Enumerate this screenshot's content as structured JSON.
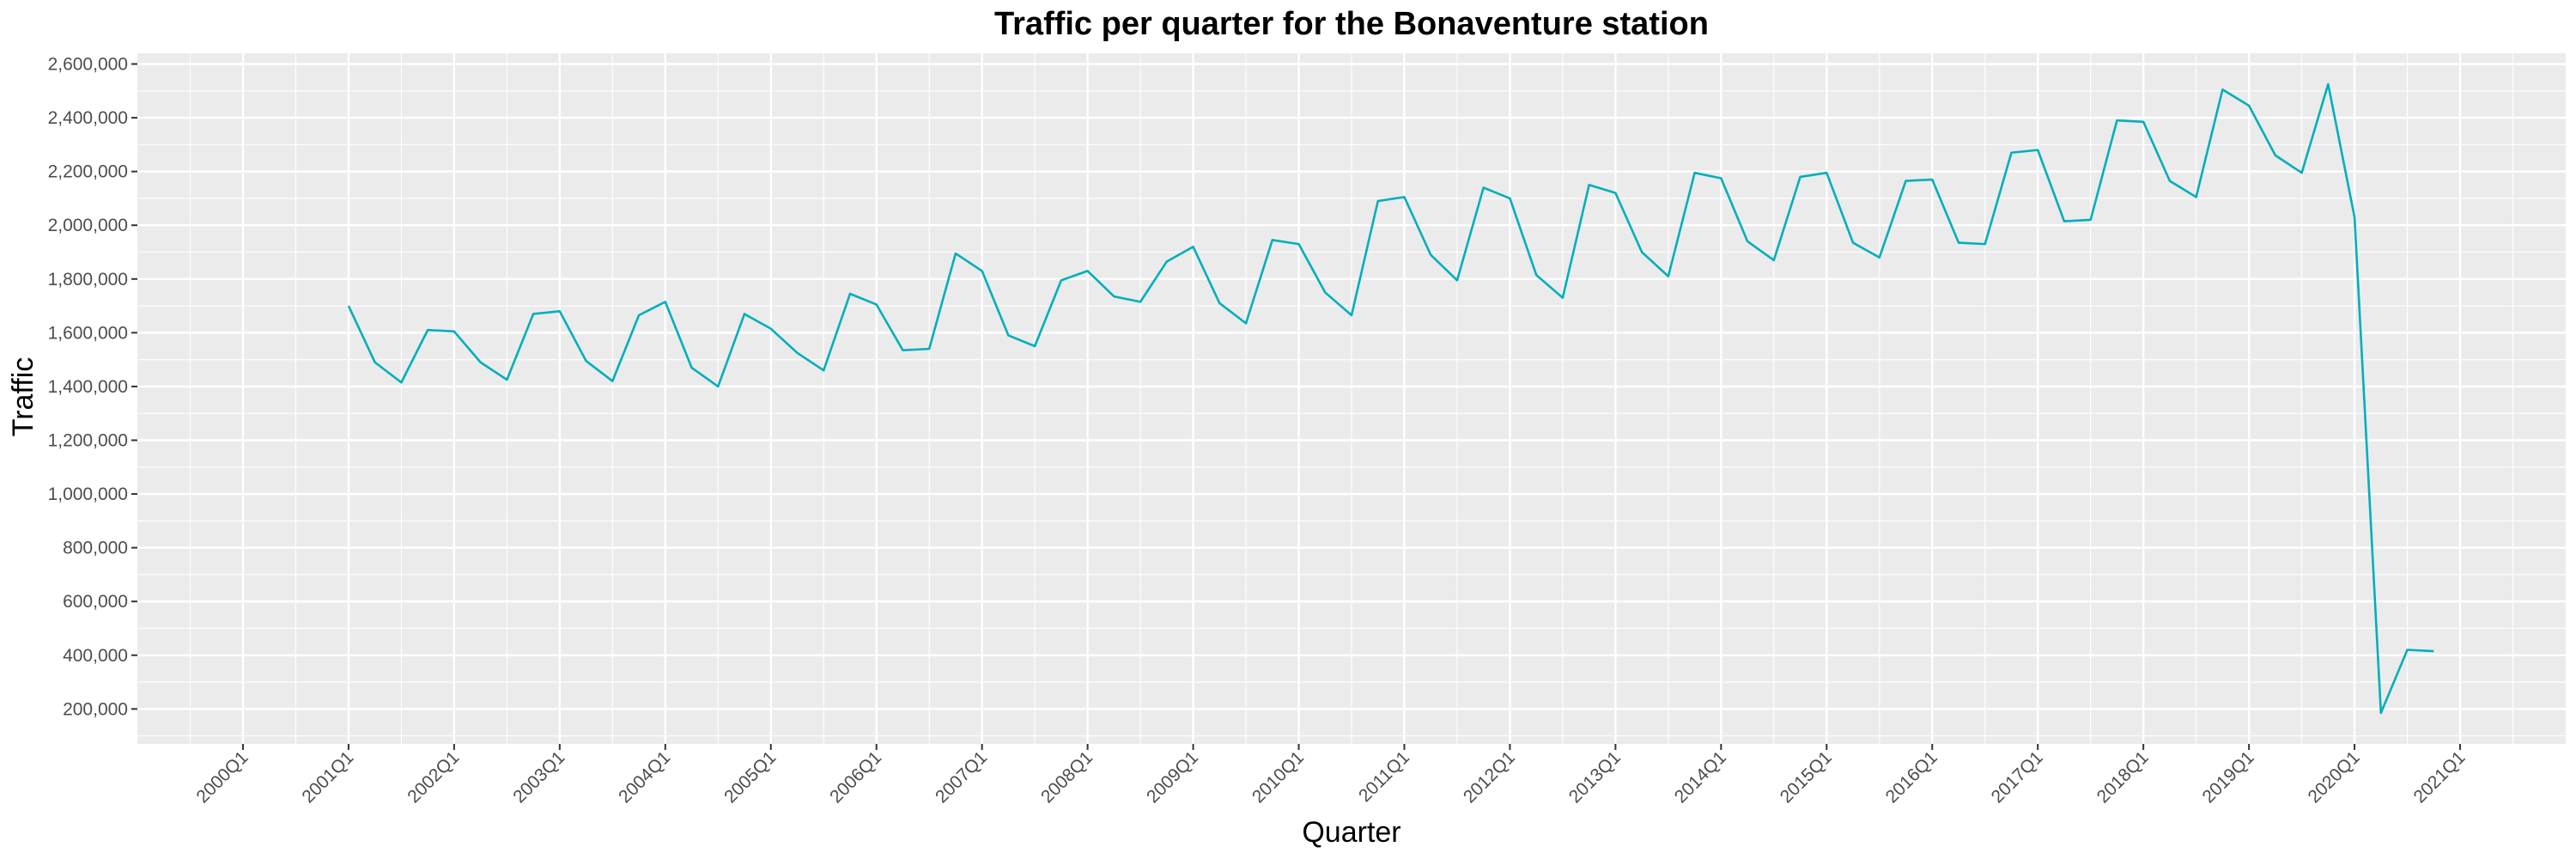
{
  "chart_data": {
    "type": "line",
    "title": "Traffic per quarter for the Bonaventure station",
    "xlabel": "Quarter",
    "ylabel": "Traffic",
    "x_tick_labels": [
      "2000Q1",
      "2001Q1",
      "2002Q1",
      "2003Q1",
      "2004Q1",
      "2005Q1",
      "2006Q1",
      "2007Q1",
      "2008Q1",
      "2009Q1",
      "2010Q1",
      "2011Q1",
      "2012Q1",
      "2013Q1",
      "2014Q1",
      "2015Q1",
      "2016Q1",
      "2017Q1",
      "2018Q1",
      "2019Q1",
      "2020Q1",
      "2021Q1"
    ],
    "y_tick_labels": [
      "200,000",
      "400,000",
      "600,000",
      "800,000",
      "1,000,000",
      "1,200,000",
      "1,400,000",
      "1,600,000",
      "1,800,000",
      "2,000,000",
      "2,200,000",
      "2,400,000",
      "2,600,000"
    ],
    "y_ticks": [
      200000,
      400000,
      600000,
      800000,
      1000000,
      1200000,
      1400000,
      1600000,
      1800000,
      2000000,
      2200000,
      2400000,
      2600000
    ],
    "xlim": [
      "2000Q1",
      "2021Q1"
    ],
    "ylim": [
      70000,
      2640000
    ],
    "grid": true,
    "series": [
      {
        "color": "#00AFBB",
        "x": [
          "2001Q1",
          "2001Q2",
          "2001Q3",
          "2001Q4",
          "2002Q1",
          "2002Q2",
          "2002Q3",
          "2002Q4",
          "2003Q1",
          "2003Q2",
          "2003Q3",
          "2003Q4",
          "2004Q1",
          "2004Q2",
          "2004Q3",
          "2004Q4",
          "2005Q1",
          "2005Q2",
          "2005Q3",
          "2005Q4",
          "2006Q1",
          "2006Q2",
          "2006Q3",
          "2006Q4",
          "2007Q1",
          "2007Q2",
          "2007Q3",
          "2007Q4",
          "2008Q1",
          "2008Q2",
          "2008Q3",
          "2008Q4",
          "2009Q1",
          "2009Q2",
          "2009Q3",
          "2009Q4",
          "2010Q1",
          "2010Q2",
          "2010Q3",
          "2010Q4",
          "2011Q1",
          "2011Q2",
          "2011Q3",
          "2011Q4",
          "2012Q1",
          "2012Q2",
          "2012Q3",
          "2012Q4",
          "2013Q1",
          "2013Q2",
          "2013Q3",
          "2013Q4",
          "2014Q1",
          "2014Q2",
          "2014Q3",
          "2014Q4",
          "2015Q1",
          "2015Q2",
          "2015Q3",
          "2015Q4",
          "2016Q1",
          "2016Q2",
          "2016Q3",
          "2016Q4",
          "2017Q1",
          "2017Q2",
          "2017Q3",
          "2017Q4",
          "2018Q1",
          "2018Q2",
          "2018Q3",
          "2018Q4",
          "2019Q1",
          "2019Q2",
          "2019Q3",
          "2019Q4",
          "2020Q1",
          "2020Q2",
          "2020Q3",
          "2020Q4"
        ],
        "values": [
          1700000,
          1490000,
          1415000,
          1610000,
          1605000,
          1490000,
          1425000,
          1670000,
          1680000,
          1495000,
          1420000,
          1665000,
          1715000,
          1470000,
          1400000,
          1670000,
          1615000,
          1525000,
          1460000,
          1745000,
          1705000,
          1535000,
          1540000,
          1895000,
          1830000,
          1590000,
          1550000,
          1795000,
          1830000,
          1735000,
          1715000,
          1865000,
          1920000,
          1710000,
          1635000,
          1945000,
          1930000,
          1750000,
          1665000,
          2090000,
          2105000,
          1890000,
          1795000,
          2140000,
          2100000,
          1815000,
          1730000,
          2150000,
          2120000,
          1900000,
          1810000,
          2195000,
          2175000,
          1940000,
          1870000,
          2180000,
          2195000,
          1935000,
          1880000,
          2165000,
          2170000,
          1935000,
          1930000,
          2270000,
          2280000,
          2015000,
          2020000,
          2390000,
          2385000,
          2165000,
          2105000,
          2505000,
          2445000,
          2260000,
          2195000,
          2525000,
          2030000,
          185000,
          420000,
          415000
        ]
      }
    ]
  }
}
